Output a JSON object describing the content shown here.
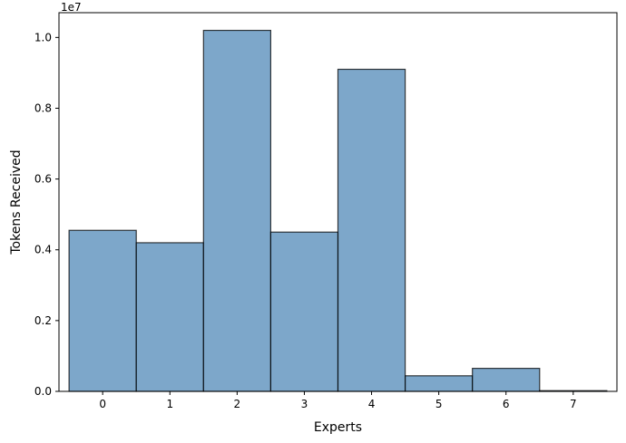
{
  "chart_data": {
    "type": "bar",
    "title": "",
    "xlabel": "Experts",
    "ylabel": "Tokens Received",
    "y_multiplier_label": "1e7",
    "categories": [
      "0",
      "1",
      "2",
      "3",
      "4",
      "5",
      "6",
      "7"
    ],
    "values": [
      4550000,
      4200000,
      10200000,
      4500000,
      9100000,
      440000,
      650000,
      20000
    ],
    "ylim": [
      0,
      10700000
    ],
    "xlim": [
      -0.65,
      7.65
    ],
    "y_ticks": [
      0,
      2000000,
      4000000,
      6000000,
      8000000,
      10000000
    ],
    "y_tick_labels": [
      "0.0",
      "0.2",
      "0.4",
      "0.6",
      "0.8",
      "1.0"
    ],
    "bar_color": "#4682b4",
    "bar_opacity": 0.7,
    "bar_edge_color": "#000000",
    "grid": false,
    "legend": "none"
  }
}
